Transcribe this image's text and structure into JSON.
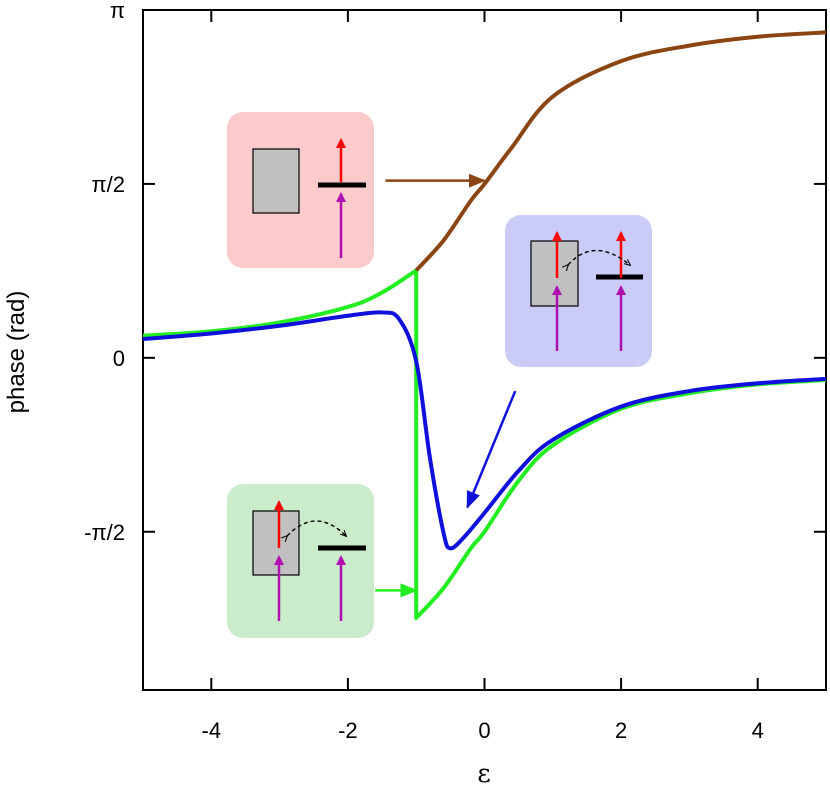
{
  "chart_data": {
    "type": "line",
    "xlabel": "ε",
    "ylabel": "phase (rad)",
    "xlim": [
      -5,
      5
    ],
    "ylim": [
      -3.0,
      3.1416
    ],
    "x_ticks": [
      {
        "value": -4,
        "label": "-4"
      },
      {
        "value": -2,
        "label": "-2"
      },
      {
        "value": 0,
        "label": "0"
      },
      {
        "value": 2,
        "label": "2"
      },
      {
        "value": 4,
        "label": "4"
      }
    ],
    "y_ticks": [
      {
        "value": 3.1416,
        "label": "π"
      },
      {
        "value": 1.5708,
        "label": "π/2"
      },
      {
        "value": 0,
        "label": "0"
      },
      {
        "value": -1.5708,
        "label": "-π/2"
      }
    ],
    "colors": {
      "brown": "#8b4513",
      "green": "#22ee22",
      "blue": "#1010dd",
      "inset_red_bg": "#fbcaca",
      "inset_blue_bg": "#cbcbf8",
      "inset_green_bg": "#cbeccb",
      "reservoir": "#c0c0c0",
      "spin_up": "#ff0000",
      "spin_magenta": "#b010b0"
    },
    "series": [
      {
        "color": "#8b4513",
        "x": [
          -1.0,
          -0.6,
          -0.2,
          0.0,
          0.4,
          1.0,
          2.0,
          3.0,
          4.0,
          5.0
        ],
        "y": [
          0.79,
          1.06,
          1.42,
          1.57,
          1.9,
          2.36,
          2.68,
          2.82,
          2.9,
          2.94
        ]
      },
      {
        "color": "#22ee22",
        "x": [
          -5.0,
          -4.0,
          -3.0,
          -2.0,
          -1.5,
          -1.0,
          -1.0,
          -0.6,
          -0.2,
          0.0,
          0.5,
          1.0,
          2.0,
          3.0,
          4.0,
          5.0
        ],
        "y": [
          0.2,
          0.24,
          0.32,
          0.46,
          0.59,
          0.79,
          -2.35,
          -2.08,
          -1.72,
          -1.57,
          -1.11,
          -0.79,
          -0.46,
          -0.32,
          -0.24,
          -0.2
        ]
      },
      {
        "color": "#1010dd",
        "x": [
          -5.0,
          -4.0,
          -3.0,
          -2.0,
          -1.5,
          -1.25,
          -1.0,
          -0.8,
          -0.6,
          -0.5,
          -0.3,
          0.0,
          0.5,
          1.0,
          2.0,
          3.0,
          4.0,
          5.0
        ],
        "y": [
          0.17,
          0.22,
          0.29,
          0.38,
          0.41,
          0.35,
          -0.03,
          -0.9,
          -1.58,
          -1.72,
          -1.62,
          -1.4,
          -1.02,
          -0.74,
          -0.44,
          -0.3,
          -0.23,
          -0.19
        ]
      }
    ],
    "annotations": [
      {
        "type": "arrow",
        "color": "#8b4513",
        "from": [
          -1.45,
          1.6
        ],
        "to": [
          0.0,
          1.6
        ]
      },
      {
        "type": "arrow",
        "color": "#1010dd",
        "from": [
          0.45,
          -0.3
        ],
        "to": [
          -0.25,
          -1.35
        ]
      },
      {
        "type": "arrow",
        "color": "#22ee22",
        "from": [
          -1.6,
          -2.1
        ],
        "to": [
          -1.0,
          -2.1
        ]
      }
    ]
  }
}
